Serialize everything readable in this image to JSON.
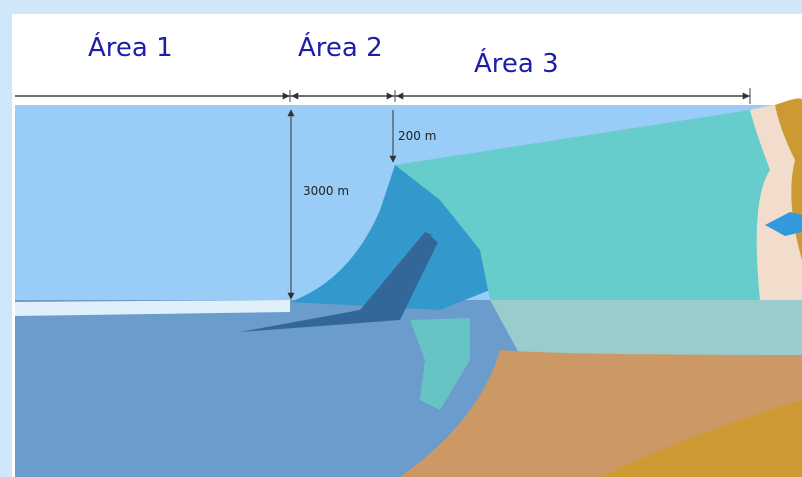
{
  "labels": {
    "area_1": "Área 1",
    "area_2": "Área 2",
    "area_3": "Área 3"
  },
  "depths": {
    "shelf": "200 m",
    "slope": "3000 m"
  }
}
